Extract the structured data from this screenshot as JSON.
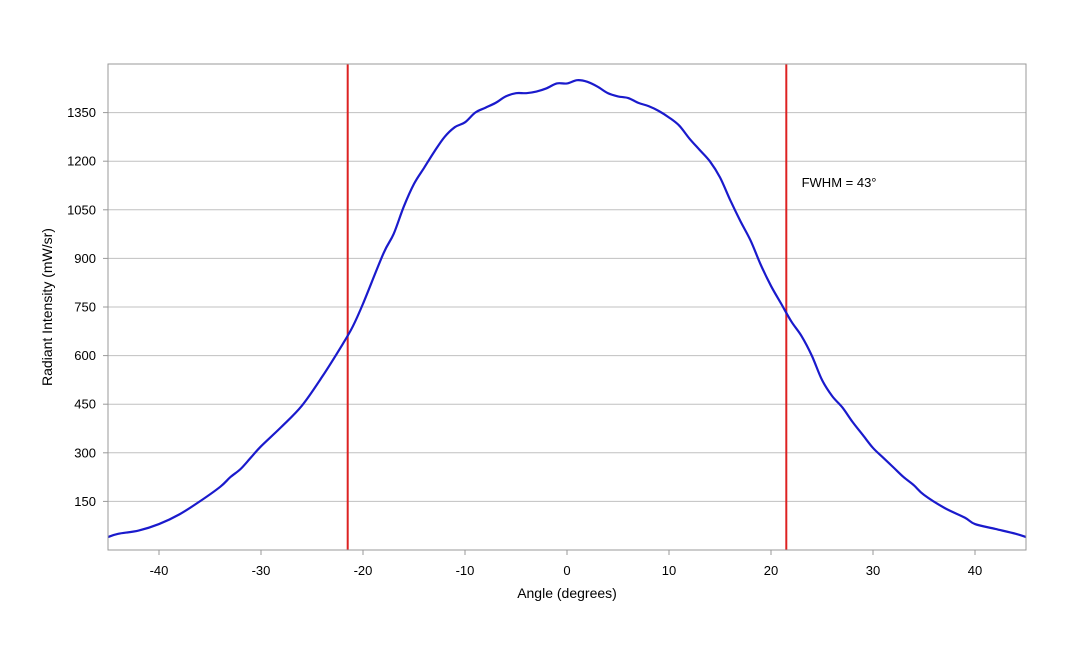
{
  "chart_data": {
    "type": "line",
    "title": "",
    "xlabel": "Angle (degrees)",
    "ylabel": "Radiant Intensity (mW/sr)",
    "xlim": [
      -45,
      45
    ],
    "ylim": [
      0,
      1500
    ],
    "x_ticks": [
      -40,
      -30,
      -20,
      -10,
      0,
      10,
      20,
      30,
      40
    ],
    "y_ticks": [
      150,
      300,
      450,
      600,
      750,
      900,
      1050,
      1200,
      1350
    ],
    "x_tick_labels": [
      "-40",
      "-30",
      "-20",
      "-10",
      "0",
      "10",
      "20",
      "30",
      "40"
    ],
    "y_tick_labels": [
      "150",
      "300",
      "450",
      "600",
      "750",
      "900",
      "1050",
      "1200",
      "1350"
    ],
    "grid": "horizontal",
    "legend": "none",
    "series": [
      {
        "color": "#1a1acc",
        "x": [
          -45,
          -44,
          -42,
          -40,
          -38,
          -36,
          -34,
          -33,
          -32,
          -31,
          -30,
          -28,
          -26,
          -24,
          -22,
          -21,
          -20,
          -18,
          -17,
          -16,
          -15,
          -14,
          -13,
          -12,
          -11,
          -10,
          -9,
          -8,
          -7,
          -6,
          -5,
          -4,
          -3,
          -2,
          -1,
          0,
          1,
          2,
          3,
          4,
          5,
          6,
          7,
          8,
          9,
          10,
          11,
          12,
          13,
          14,
          15,
          16,
          17,
          18,
          19,
          20,
          21,
          22,
          23,
          24,
          25,
          26,
          27,
          28,
          29,
          30,
          31,
          32,
          33,
          34,
          35,
          37,
          39,
          40,
          42,
          44,
          45
        ],
        "y": [
          40,
          50,
          60,
          80,
          110,
          150,
          195,
          225,
          250,
          285,
          320,
          380,
          445,
          535,
          635,
          690,
          760,
          915,
          975,
          1060,
          1130,
          1180,
          1230,
          1275,
          1305,
          1320,
          1350,
          1365,
          1380,
          1400,
          1410,
          1410,
          1415,
          1425,
          1440,
          1440,
          1450,
          1445,
          1430,
          1410,
          1400,
          1395,
          1380,
          1370,
          1355,
          1335,
          1310,
          1270,
          1235,
          1200,
          1150,
          1080,
          1015,
          955,
          880,
          815,
          760,
          705,
          660,
          600,
          525,
          475,
          440,
          395,
          355,
          315,
          285,
          255,
          225,
          200,
          170,
          130,
          100,
          80,
          65,
          50,
          40
        ]
      }
    ],
    "vlines": [
      {
        "x": -21.5,
        "color": "#dd2222"
      },
      {
        "x": 21.5,
        "color": "#dd2222"
      }
    ],
    "annotations": [
      {
        "text": "FWHM = 43°",
        "x": 23,
        "y": 1120
      }
    ]
  }
}
